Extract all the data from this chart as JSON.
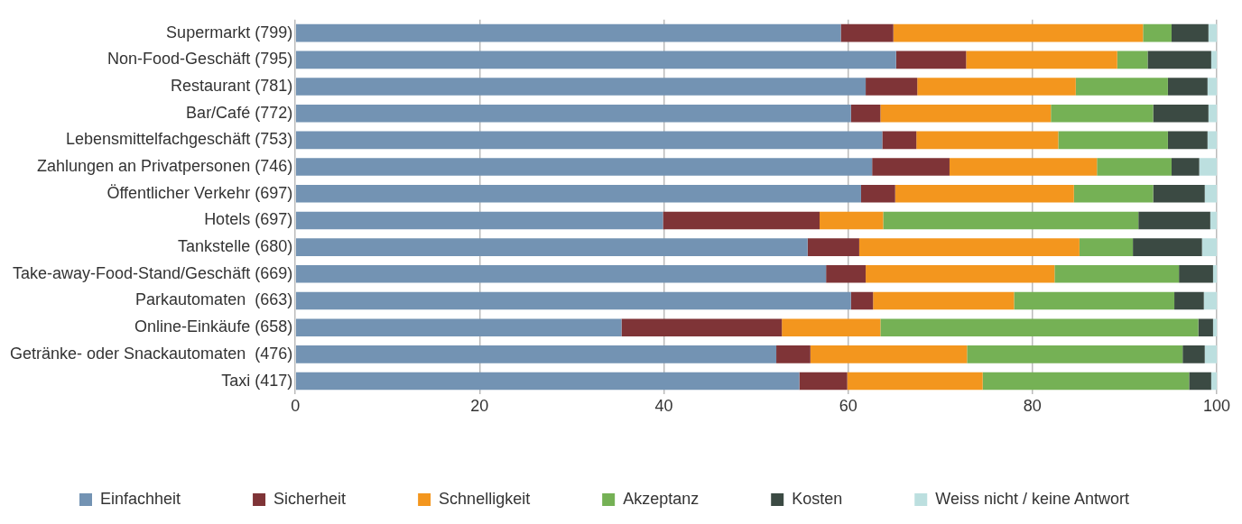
{
  "chart_data": {
    "type": "bar",
    "orientation": "horizontal",
    "stacked": true,
    "categories": [
      "Supermarkt (799)",
      "Non-Food-Geschäft (795)",
      "Restaurant (781)",
      "Bar/Café (772)",
      "Lebensmittelfachgeschäft (753)",
      "Zahlungen an Privatpersonen (746)",
      "Öffentlicher Verkehr (697)",
      "Hotels (697)",
      "Tankstelle (680)",
      "Take-away-Food-Stand/Geschäft (669)",
      "Parkautomaten  (663)",
      "Online-Einkäufe (658)",
      "Getränke- oder Snackautomaten  (476)",
      "Taxi (417)"
    ],
    "series": [
      {
        "name": "Einfachheit",
        "color": "#7393b3",
        "values": [
          59.2,
          65.2,
          61.9,
          60.3,
          63.7,
          62.6,
          61.4,
          39.9,
          55.6,
          57.6,
          60.3,
          35.4,
          52.2,
          54.7
        ]
      },
      {
        "name": "Sicherheit",
        "color": "#7f3437",
        "values": [
          5.7,
          7.6,
          5.6,
          3.2,
          3.7,
          8.4,
          3.7,
          17.0,
          5.6,
          4.3,
          2.4,
          17.4,
          3.7,
          5.2
        ]
      },
      {
        "name": "Schnelligkeit",
        "color": "#f3961e",
        "values": [
          27.1,
          16.4,
          17.2,
          18.5,
          15.4,
          16.0,
          19.4,
          6.9,
          23.9,
          20.5,
          15.3,
          10.7,
          17.0,
          14.7
        ]
      },
      {
        "name": "Akzeptanz",
        "color": "#75b155",
        "values": [
          3.1,
          3.3,
          10.0,
          11.1,
          11.9,
          8.1,
          8.6,
          27.7,
          5.8,
          13.5,
          17.4,
          34.5,
          23.4,
          22.4
        ]
      },
      {
        "name": "Kosten",
        "color": "#3b4a43",
        "values": [
          4.0,
          6.9,
          4.3,
          6.0,
          4.3,
          3.0,
          5.6,
          7.8,
          7.5,
          3.7,
          3.2,
          1.6,
          2.4,
          2.4
        ]
      },
      {
        "name": "Weiss nicht / keine Antwort",
        "color": "#bcdfdf",
        "values": [
          1.0,
          0.7,
          1.0,
          1.0,
          1.0,
          2.1,
          1.4,
          0.8,
          1.7,
          0.4,
          1.5,
          0.5,
          1.4,
          0.7
        ]
      }
    ],
    "xlim": [
      0,
      100
    ],
    "xticks": [
      0,
      20,
      40,
      60,
      80,
      100
    ],
    "grid": "x",
    "legend": "bottom left"
  }
}
